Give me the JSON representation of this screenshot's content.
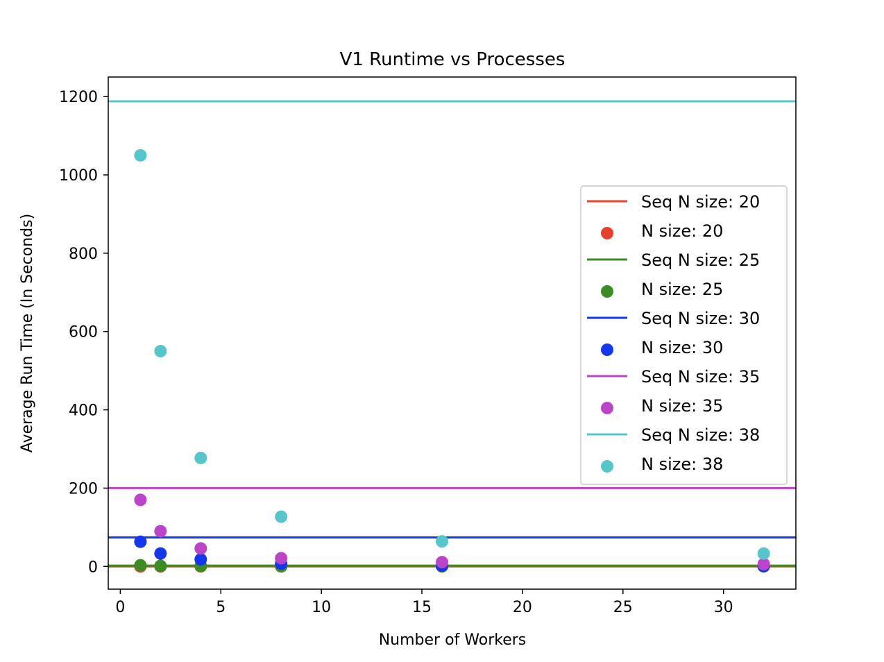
{
  "chart_data": {
    "type": "scatter",
    "title": "V1 Runtime vs Processes",
    "xlabel": "Number of Workers",
    "ylabel": "Average Run Time (In Seconds)",
    "xlim": [
      -0.6,
      33.6
    ],
    "ylim": [
      -58,
      1250
    ],
    "xticks": [
      0,
      5,
      10,
      15,
      20,
      25,
      30
    ],
    "yticks": [
      0,
      200,
      400,
      600,
      800,
      1000,
      1200
    ],
    "x": [
      1,
      2,
      4,
      8,
      16,
      32
    ],
    "grid": false,
    "legend_position": "center-right",
    "series": [
      {
        "name": "Seq N size: 20",
        "seq_name": "Seq N size: 20",
        "points_name": "N size: 20",
        "color": "#e8402a",
        "seq_value": 0.1,
        "values": [
          0.05,
          0.05,
          0.05,
          0.05,
          0.05,
          0.05
        ]
      },
      {
        "name": "Seq N size: 25",
        "seq_name": "Seq N size: 25",
        "points_name": "N size: 25",
        "color": "#3a8c23",
        "seq_value": 2,
        "values": [
          3,
          1.5,
          1,
          0.5,
          0.3,
          0.3
        ]
      },
      {
        "name": "Seq N size: 30",
        "seq_name": "Seq N size: 30",
        "points_name": "N size: 30",
        "color": "#1237ec",
        "seq_value": 74,
        "values": [
          63,
          33,
          18,
          7,
          2,
          1
        ]
      },
      {
        "name": "Seq N size: 35",
        "seq_name": "Seq N size: 35",
        "points_name": "N size: 35",
        "color": "#bb44c8",
        "seq_value": 200,
        "values": [
          170,
          90,
          46,
          21,
          11,
          6
        ]
      },
      {
        "name": "Seq N size: 38",
        "seq_name": "Seq N size: 38",
        "points_name": "N size: 38",
        "color": "#56c6cb",
        "seq_value": 1188,
        "values": [
          1050,
          550,
          277,
          127,
          64,
          33
        ]
      }
    ]
  }
}
